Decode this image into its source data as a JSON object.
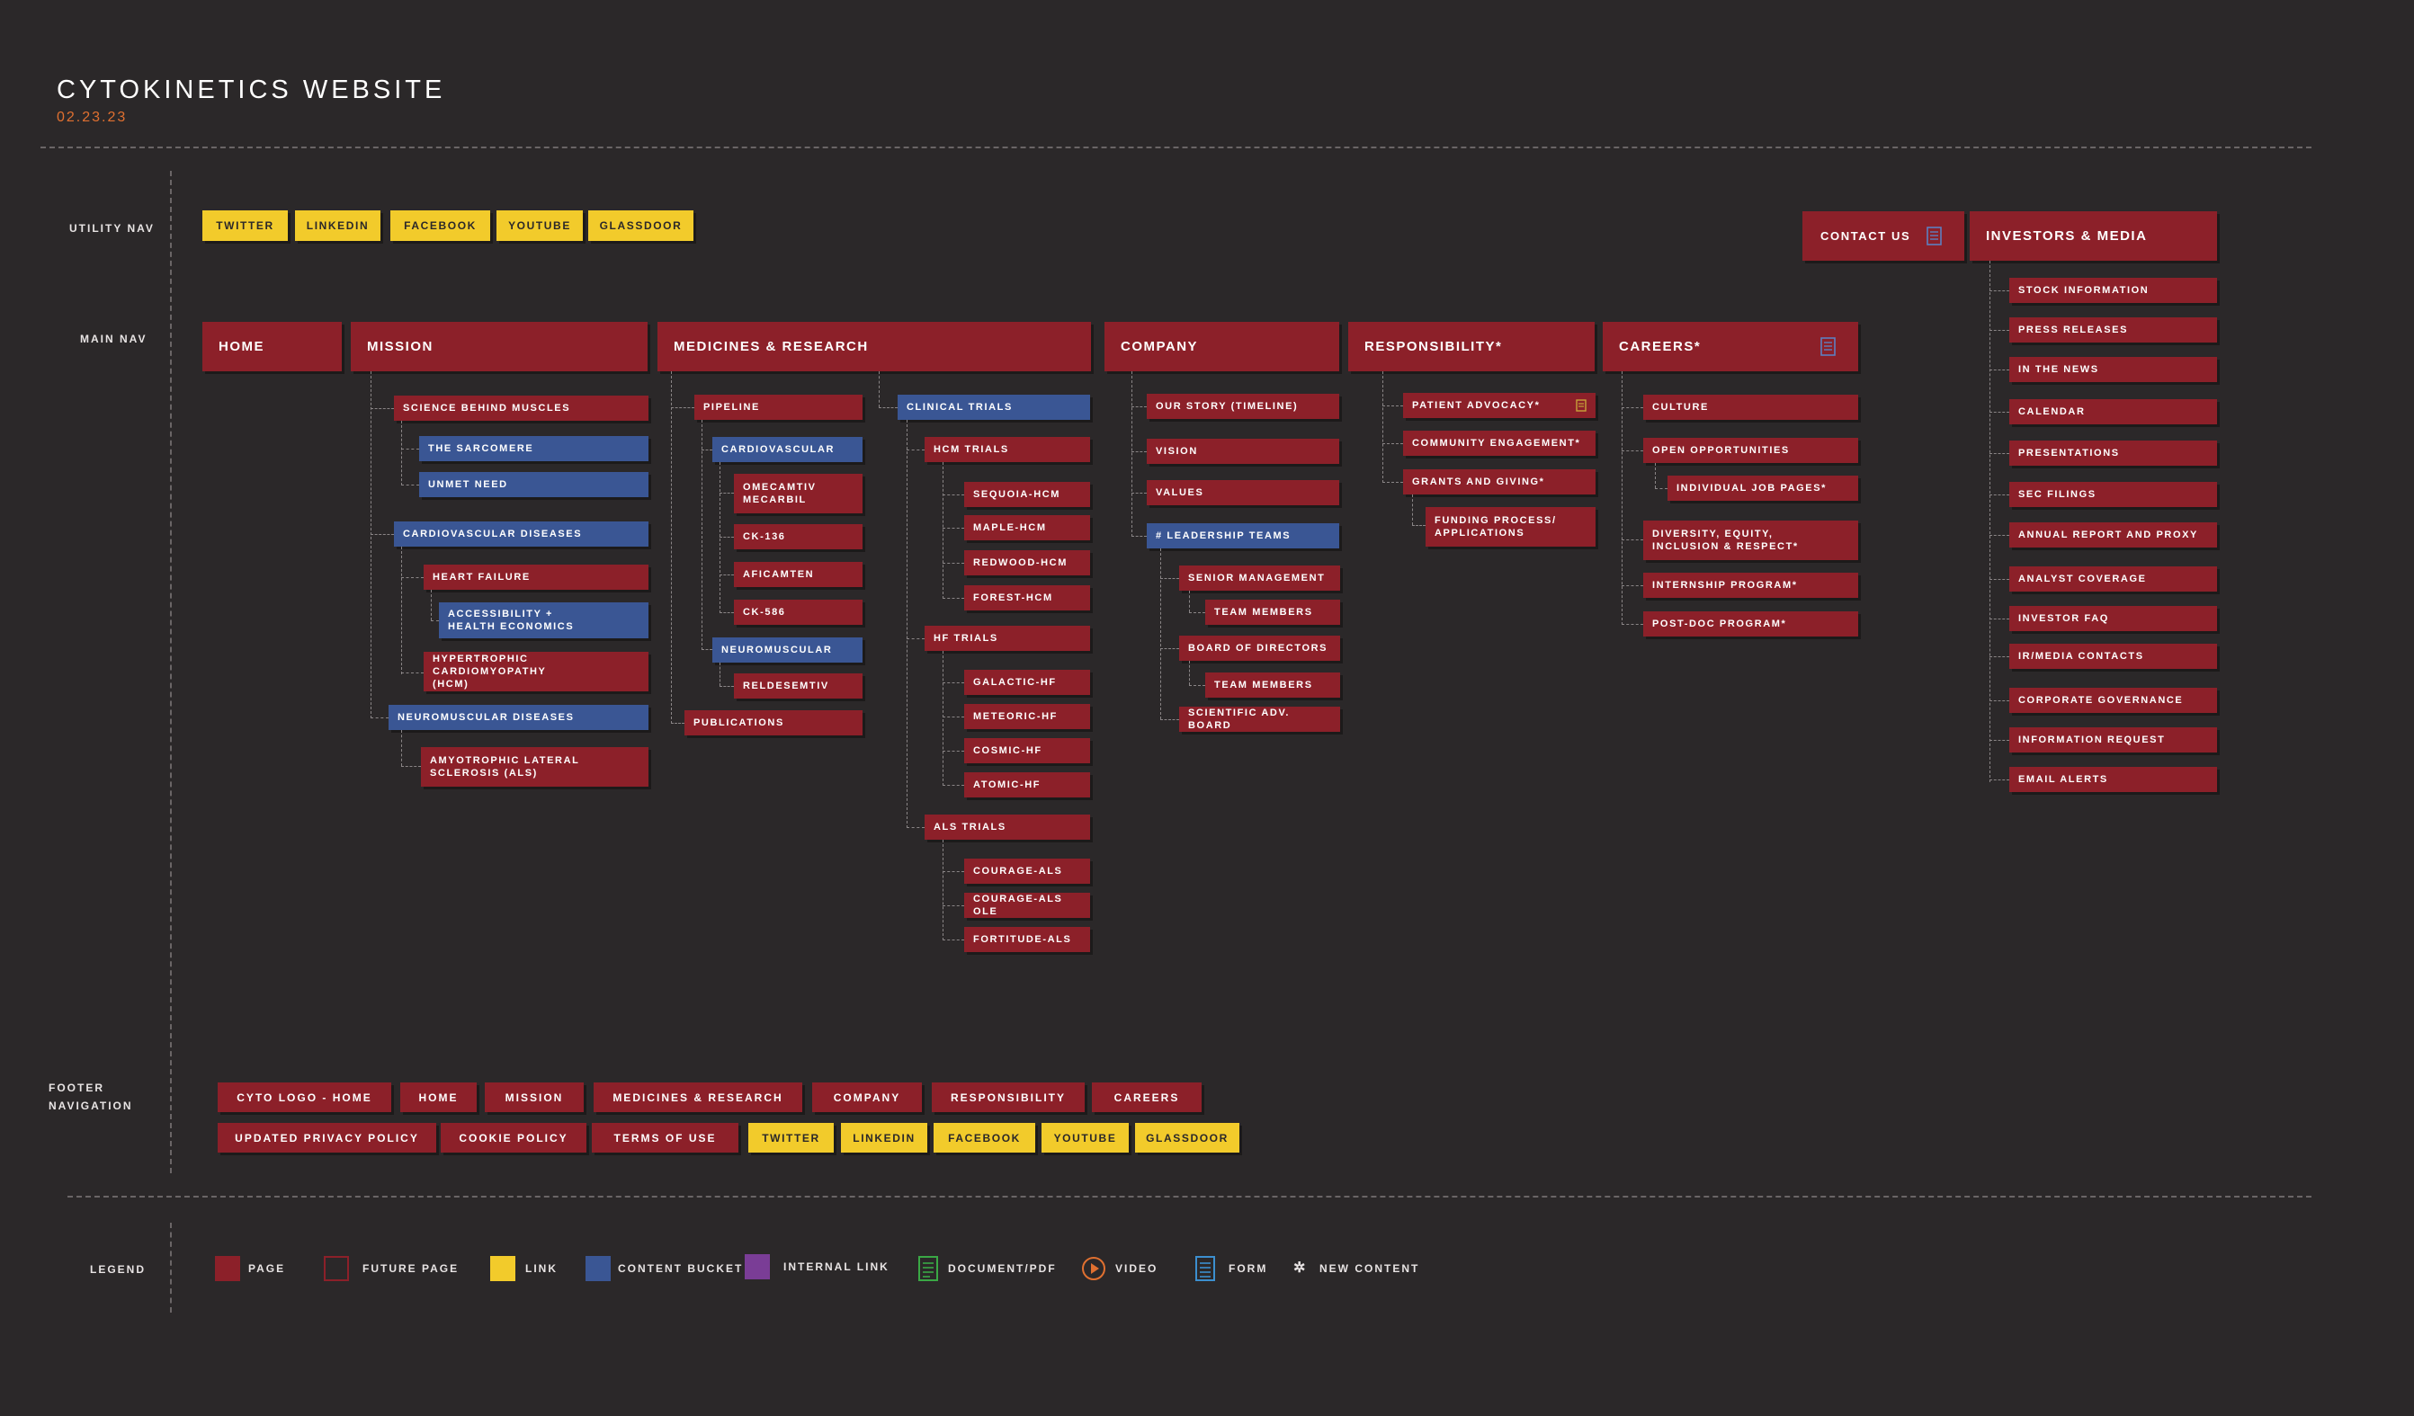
{
  "header": {
    "title": "CYTOKINETICS WEBSITE",
    "date": "02.23.23"
  },
  "sections": {
    "utility_nav": "UTILITY NAV",
    "main_nav": "MAIN NAV",
    "footer_nav": "FOOTER\nNAVIGATION",
    "legend": "LEGEND"
  },
  "utility_nav": {
    "links": [
      "TWITTER",
      "LINKEDIN",
      "FACEBOOK",
      "YOUTUBE",
      "GLASSDOOR"
    ],
    "contact": "CONTACT US",
    "contact_icon": "form-icon"
  },
  "investors": {
    "label": "INVESTORS & MEDIA",
    "items": [
      "STOCK INFORMATION",
      "PRESS RELEASES",
      "IN THE NEWS",
      "CALENDAR",
      "PRESENTATIONS",
      "SEC FILINGS",
      "ANNUAL REPORT AND PROXY",
      "ANALYST COVERAGE",
      "INVESTOR FAQ",
      "IR/MEDIA CONTACTS",
      "CORPORATE GOVERNANCE",
      "INFORMATION REQUEST",
      "EMAIL ALERTS"
    ]
  },
  "main_nav": {
    "home": "HOME",
    "mission": {
      "label": "MISSION",
      "items": [
        "SCIENCE BEHIND MUSCLES",
        "THE SARCOMERE",
        "UNMET NEED",
        "CARDIOVASCULAR DISEASES",
        "HEART FAILURE",
        "ACCESSIBILITY +\nHEALTH ECONOMICS",
        "HYPERTROPHIC CARDIOMYOPATHY\n(HCM)",
        "NEUROMUSCULAR DISEASES",
        "AMYOTROPHIC LATERAL\nSCLEROSIS (ALS)"
      ]
    },
    "medicines": {
      "label": "MEDICINES & RESEARCH",
      "pipeline": [
        "PIPELINE",
        "CARDIOVASCULAR",
        "OMECAMTIV\nMECARBIL",
        "CK-136",
        "AFICAMTEN",
        "CK-586",
        "NEUROMUSCULAR",
        "RELDESEMTIV",
        "PUBLICATIONS"
      ],
      "trials": [
        "CLINICAL TRIALS",
        "HCM TRIALS",
        "SEQUOIA-HCM",
        "MAPLE-HCM",
        "REDWOOD-HCM",
        "FOREST-HCM",
        "HF TRIALS",
        "GALACTIC-HF",
        "METEORIC-HF",
        "COSMIC-HF",
        "ATOMIC-HF",
        "ALS TRIALS",
        "COURAGE-ALS",
        "COURAGE-ALS OLE",
        "FORTITUDE-ALS"
      ]
    },
    "company": {
      "label": "COMPANY",
      "items": [
        "OUR STORY (TIMELINE)",
        "VISION",
        "VALUES",
        "# LEADERSHIP TEAMS",
        "SENIOR MANAGEMENT",
        "TEAM MEMBERS",
        "BOARD OF DIRECTORS",
        "TEAM MEMBERS",
        "SCIENTIFIC ADV. BOARD"
      ]
    },
    "responsibility": {
      "label": "RESPONSIBILITY*",
      "items": [
        "PATIENT ADVOCACY*",
        "COMMUNITY ENGAGEMENT*",
        "GRANTS AND GIVING*",
        "FUNDING PROCESS/\nAPPLICATIONS"
      ]
    },
    "careers": {
      "label": "CAREERS*",
      "items": [
        "CULTURE",
        "OPEN OPPORTUNITIES",
        "INDIVIDUAL JOB PAGES*",
        "DIVERSITY, EQUITY,\nINCLUSION & RESPECT*",
        "INTERNSHIP PROGRAM*",
        "POST-DOC PROGRAM*"
      ]
    }
  },
  "footer": {
    "row1": [
      "CYTO LOGO - HOME",
      "HOME",
      "MISSION",
      "MEDICINES & RESEARCH",
      "COMPANY",
      "RESPONSIBILITY",
      "CAREERS"
    ],
    "row2_pages": [
      "UPDATED PRIVACY POLICY",
      "COOKIE POLICY",
      "TERMS OF USE"
    ],
    "row2_links": [
      "TWITTER",
      "LINKEDIN",
      "FACEBOOK",
      "YOUTUBE",
      "GLASSDOOR"
    ]
  },
  "legend": {
    "items": [
      "PAGE",
      "FUTURE PAGE",
      "LINK",
      "CONTENT BUCKET",
      "INTERNAL LINK",
      "DOCUMENT/PDF",
      "VIDEO",
      "FORM",
      "NEW CONTENT"
    ],
    "new_content_symbol": "✲"
  },
  "colors": {
    "background": "#2b2829",
    "page": "#8c2029",
    "content_bucket": "#3a5694",
    "link": "#f2cb2b",
    "internal_link": "#7a3d96",
    "document": "#3aa845",
    "video": "#e07030",
    "form": "#3c8fcf",
    "date_accent": "#e07030"
  }
}
